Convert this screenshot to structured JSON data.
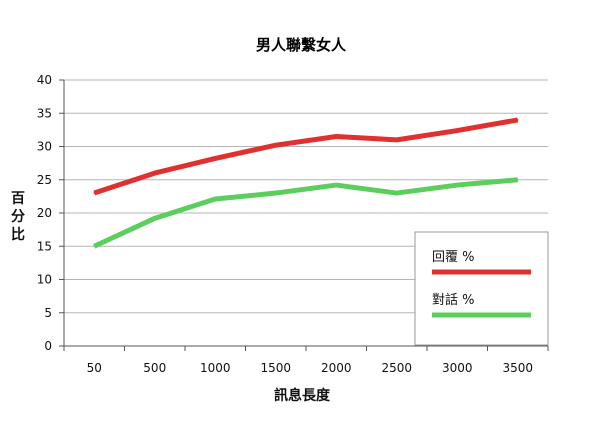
{
  "chart_data": {
    "type": "line",
    "title": "男人聯繫女人",
    "xlabel": "訊息長度",
    "ylabel": "百分比",
    "categories": [
      "50",
      "500",
      "1000",
      "1500",
      "2000",
      "2500",
      "3000",
      "3500"
    ],
    "ylim": [
      0,
      40
    ],
    "yticks": [
      "0",
      "5",
      "10",
      "15",
      "20",
      "25",
      "30",
      "35",
      "40"
    ],
    "grid": true,
    "legend_position": "bottom-right",
    "series": [
      {
        "name": "回覆 %",
        "color": "#e03030",
        "values": [
          23,
          26,
          28.2,
          30.2,
          31.5,
          31,
          32.4,
          34
        ]
      },
      {
        "name": "對話 %",
        "color": "#5cce5c",
        "values": [
          15,
          19.2,
          22.1,
          23,
          24.2,
          23,
          24.2,
          25
        ]
      }
    ]
  }
}
